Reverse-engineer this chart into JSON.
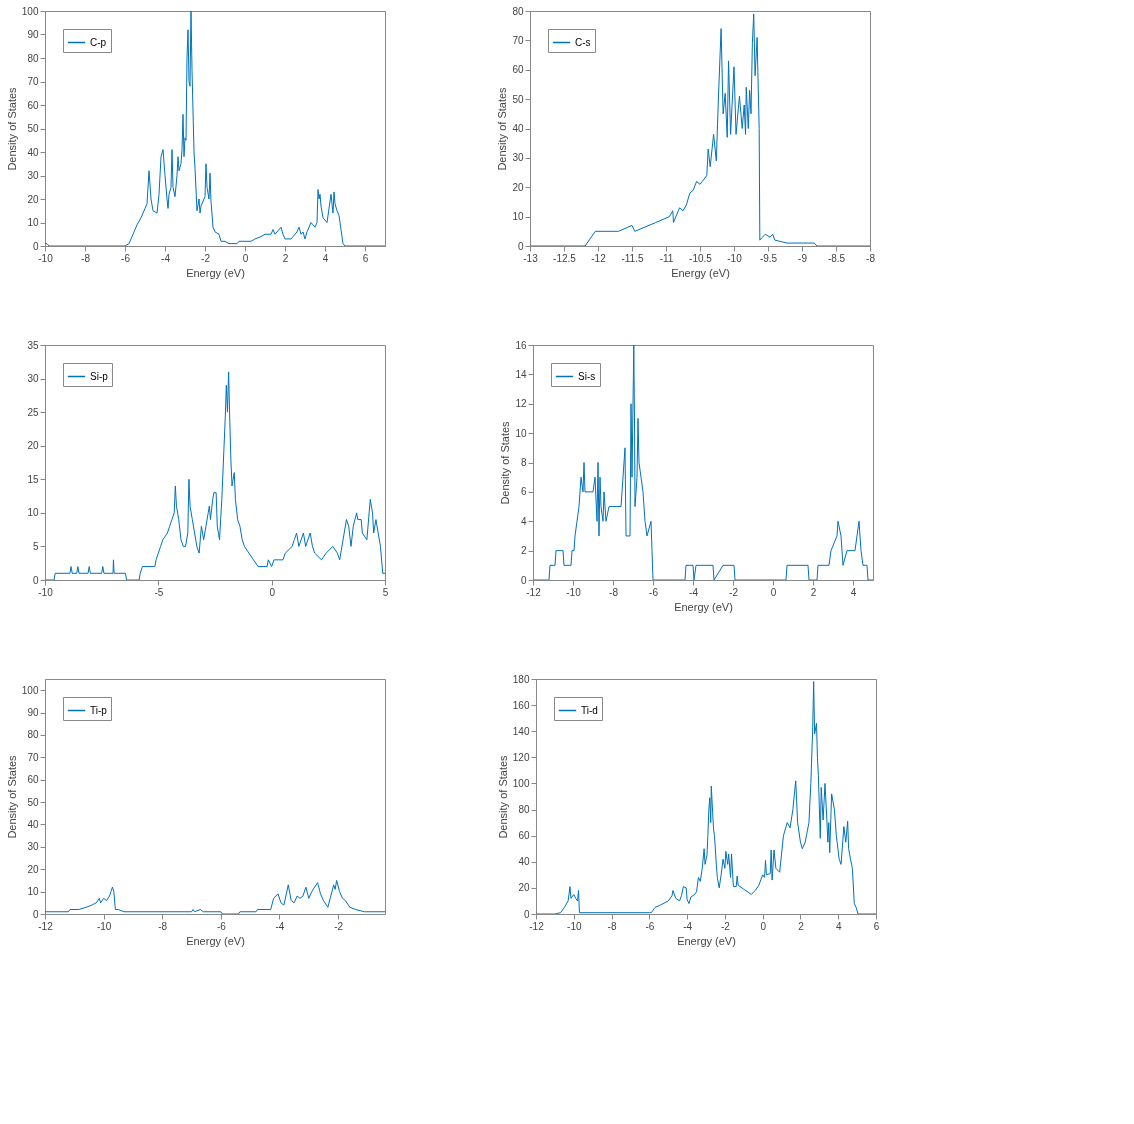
{
  "chart_data": [
    {
      "type": "line",
      "xlabel": "Energy (eV)",
      "ylabel": "Density of States",
      "xlim": [
        -10,
        7
      ],
      "xticks": [
        -10,
        -8,
        -6,
        -4,
        -2,
        0,
        2,
        4,
        6
      ],
      "ylim": [
        0,
        100
      ],
      "yticks": [
        0,
        10,
        20,
        30,
        40,
        50,
        60,
        70,
        80,
        90,
        100
      ],
      "grid": false,
      "legend": "top left",
      "series": [
        {
          "name": "C-p",
          "color": "#0072bd",
          "x": [
            -10,
            -9.9,
            -9.8,
            -6,
            -5.8,
            -5.6,
            -5.4,
            -5.2,
            -5.0,
            -4.9,
            -4.8,
            -4.7,
            -4.6,
            -4.4,
            -4.3,
            -4.2,
            -4.1,
            -4.0,
            -3.9,
            -3.85,
            -3.8,
            -3.7,
            -3.65,
            -3.6,
            -3.5,
            -3.4,
            -3.35,
            -3.3,
            -3.2,
            -3.15,
            -3.1,
            -3.05,
            -3.0,
            -2.95,
            -2.9,
            -2.85,
            -2.8,
            -2.75,
            -2.7,
            -2.65,
            -2.55,
            -2.5,
            -2.4,
            -2.3,
            -2.25,
            -2.2,
            -2.0,
            -1.95,
            -1.9,
            -1.8,
            -1.75,
            -1.7,
            -1.6,
            -1.5,
            -1.3,
            -1.2,
            -1.0,
            -0.8,
            -0.4,
            -0.3,
            0.0,
            0.3,
            0.5,
            0.8,
            1.0,
            1.3,
            1.4,
            1.5,
            1.7,
            1.8,
            1.9,
            2.0,
            2.3,
            2.4,
            2.6,
            2.7,
            2.8,
            2.9,
            3.0,
            3.1,
            3.3,
            3.4,
            3.5,
            3.6,
            3.65,
            3.7,
            3.75,
            3.8,
            3.9,
            4.1,
            4.3,
            4.4,
            4.45,
            4.5,
            4.6,
            4.7,
            4.8,
            4.9,
            5.0,
            7.0
          ],
          "values": [
            1,
            1,
            0,
            0,
            1,
            5,
            9,
            12,
            16,
            18,
            32,
            20,
            15,
            14,
            22,
            38,
            41,
            30,
            20,
            16,
            22,
            25,
            41,
            25,
            21,
            30,
            38,
            32,
            35,
            41,
            56,
            38,
            46,
            45,
            80,
            92,
            70,
            68,
            100,
            75,
            40,
            33,
            15,
            20,
            14,
            17,
            21,
            35,
            25,
            20,
            31,
            19,
            8,
            6,
            5,
            2,
            2,
            1,
            1,
            2,
            2,
            2,
            3,
            4,
            5,
            5,
            7,
            5,
            7,
            8,
            5,
            3,
            3,
            4,
            6,
            8,
            5,
            6,
            3,
            6,
            10,
            9,
            8,
            10,
            24,
            20,
            22,
            17,
            12,
            10,
            22,
            14,
            23,
            18,
            15,
            13,
            7,
            1,
            0,
            0
          ]
        }
      ]
    },
    {
      "type": "line",
      "xlabel": "Energy (eV)",
      "ylabel": "Density of States",
      "xlim": [
        -13,
        -8
      ],
      "xticks": [
        -13,
        -12.5,
        -12,
        -11.5,
        -11,
        -10.5,
        -10,
        -9.5,
        -9,
        -8.5,
        -8
      ],
      "ylim": [
        0,
        80
      ],
      "yticks": [
        0,
        10,
        20,
        30,
        40,
        50,
        60,
        70,
        80
      ],
      "grid": false,
      "legend": "top left",
      "series": [
        {
          "name": "C-s",
          "color": "#0072bd",
          "x": [
            -13,
            -12.19,
            -12.04,
            -11.7,
            -11.5,
            -11.46,
            -11.15,
            -10.95,
            -10.9,
            -10.89,
            -10.8,
            -10.75,
            -10.7,
            -10.65,
            -10.6,
            -10.55,
            -10.5,
            -10.4,
            -10.38,
            -10.35,
            -10.3,
            -10.26,
            -10.23,
            -10.19,
            -10.16,
            -10.13,
            -10.1,
            -10.08,
            -10.05,
            -10.0,
            -9.97,
            -9.92,
            -9.88,
            -9.85,
            -9.83,
            -9.82,
            -9.79,
            -9.77,
            -9.75,
            -9.73,
            -9.71,
            -9.69,
            -9.66,
            -9.64,
            -9.63,
            -9.62,
            -9.58,
            -9.54,
            -9.47,
            -9.43,
            -9.4,
            -9.22,
            -8.82,
            -8.78,
            -8
          ],
          "values": [
            0,
            0,
            5,
            5,
            7,
            5,
            8,
            10,
            12,
            8,
            13,
            12,
            14,
            18,
            19,
            22,
            21,
            24,
            33,
            27,
            38,
            29,
            50,
            74,
            45,
            52,
            37,
            63,
            38,
            61,
            38,
            51,
            40,
            48,
            38,
            54,
            40,
            53,
            45,
            69,
            79,
            58,
            71,
            50,
            40,
            2,
            3,
            4,
            3,
            4,
            2,
            1,
            1,
            0,
            0
          ]
        }
      ]
    },
    {
      "type": "line",
      "xlim": [
        -10,
        5
      ],
      "xticks": [
        -10,
        -5,
        0,
        5
      ],
      "ylim": [
        0,
        35
      ],
      "yticks": [
        0,
        5,
        10,
        15,
        20,
        25,
        30,
        35
      ],
      "grid": false,
      "legend": "top left",
      "series": [
        {
          "name": "Si-p",
          "color": "#0072bd",
          "x": [
            -10,
            -9.6,
            -9.55,
            -8.9,
            -8.85,
            -8.8,
            -8.6,
            -8.55,
            -8.5,
            -8.1,
            -8.05,
            -8.0,
            -7.5,
            -7.45,
            -7.4,
            -7.0,
            -6.98,
            -6.95,
            -6.45,
            -6.4,
            -5.85,
            -5.8,
            -5.7,
            -5.15,
            -5.1,
            -5.0,
            -4.9,
            -4.8,
            -4.6,
            -4.5,
            -4.4,
            -4.3,
            -4.25,
            -4.2,
            -4.1,
            -4.0,
            -3.9,
            -3.8,
            -3.7,
            -3.65,
            -3.6,
            -3.5,
            -3.4,
            -3.3,
            -3.2,
            -3.1,
            -3.0,
            -2.9,
            -2.8,
            -2.75,
            -2.7,
            -2.6,
            -2.55,
            -2.45,
            -2.4,
            -2.3,
            -2.2,
            -2.1,
            -2.05,
            -2.0,
            -1.95,
            -1.9,
            -1.85,
            -1.8,
            -1.75,
            -1.65,
            -1.6,
            -1.5,
            -1.4,
            -1.3,
            -1.2,
            -1.0,
            -0.8,
            -0.6,
            -0.2,
            -0.15,
            0.0,
            0.1,
            0.5,
            0.6,
            0.9,
            1.0,
            1.1,
            1.2,
            1.4,
            1.5,
            1.7,
            1.8,
            1.9,
            2.2,
            2.4,
            2.7,
            2.9,
            3.0,
            3.2,
            3.3,
            3.4,
            3.5,
            3.6,
            3.75,
            3.8,
            3.95,
            4.0,
            4.2,
            4.35,
            4.45,
            4.5,
            4.6,
            4.7,
            4.8,
            4.9,
            5.0
          ],
          "values": [
            0,
            0,
            1,
            1,
            2,
            1,
            1,
            2,
            1,
            1,
            2,
            1,
            1,
            2,
            1,
            1,
            3,
            1,
            1,
            0,
            0,
            1,
            2,
            2,
            3,
            4,
            5,
            6,
            7,
            8,
            9,
            10,
            14,
            11,
            9,
            6,
            5,
            5,
            7,
            15,
            11,
            9,
            7,
            5,
            4,
            8,
            6,
            8,
            10,
            11,
            9,
            12,
            13,
            13,
            8,
            6,
            12,
            20,
            24,
            29,
            25,
            31,
            24,
            18,
            14,
            16,
            12,
            9,
            8,
            6,
            5,
            4,
            3,
            2,
            2,
            3,
            2,
            3,
            3,
            4,
            5,
            6,
            7,
            5,
            7,
            5,
            7,
            5,
            4,
            3,
            4,
            5,
            4,
            3,
            7,
            9,
            8,
            5,
            8,
            10,
            9,
            9,
            7,
            6,
            12,
            10,
            7,
            9,
            7,
            5,
            1,
            1
          ]
        }
      ]
    },
    {
      "type": "line",
      "xlabel": "Energy (eV)",
      "ylabel": "Density of States",
      "xlim": [
        -12,
        5
      ],
      "xticks": [
        -12,
        -10,
        -8,
        -6,
        -4,
        -2,
        0,
        2,
        4
      ],
      "ylim": [
        0,
        16
      ],
      "yticks": [
        0,
        2,
        4,
        6,
        8,
        10,
        12,
        14,
        16
      ],
      "grid": false,
      "legend": "top left",
      "series": [
        {
          "name": "Si-s",
          "color": "#0072bd",
          "x": [
            -12,
            -11.2,
            -11.15,
            -10.9,
            -10.85,
            -10.5,
            -10.45,
            -10.1,
            -10.05,
            -9.95,
            -9.9,
            -9.8,
            -9.7,
            -9.6,
            -9.5,
            -9.45,
            -9.4,
            -9.0,
            -8.9,
            -8.8,
            -8.75,
            -8.7,
            -8.65,
            -8.6,
            -8.5,
            -8.45,
            -8.35,
            -8.2,
            -7.6,
            -7.55,
            -7.4,
            -7.35,
            -7.15,
            -7.1,
            -7.05,
            -6.96,
            -6.92,
            -6.9,
            -6.8,
            -6.75,
            -6.7,
            -6.6,
            -6.5,
            -6.4,
            -6.3,
            -6.1,
            -6.05,
            -6.0,
            -4.4,
            -4.35,
            -4.0,
            -3.95,
            -3.85,
            -3.0,
            -2.95,
            -2.5,
            -1.95,
            -1.9,
            0.65,
            0.7,
            1.75,
            1.8,
            2.2,
            2.25,
            2.8,
            2.9,
            3.2,
            3.25,
            3.4,
            3.5,
            3.7,
            4.1,
            4.2,
            4.3,
            4.4,
            4.5,
            4.7,
            4.75,
            5.0
          ],
          "values": [
            0,
            0,
            1,
            1,
            2,
            2,
            1,
            1,
            2,
            2,
            3,
            4,
            5,
            7,
            6,
            8,
            6,
            6,
            7,
            4,
            8,
            3,
            7,
            5,
            4,
            6,
            4,
            5,
            5,
            6,
            9,
            3,
            3,
            12,
            7,
            16,
            10,
            5,
            7,
            11,
            8,
            7,
            6,
            4,
            3,
            4,
            2,
            0,
            0,
            1,
            1,
            0,
            1,
            1,
            0,
            1,
            1,
            0,
            0,
            1,
            1,
            0,
            0,
            1,
            1,
            2,
            3,
            4,
            3,
            1,
            2,
            2,
            3,
            4,
            2,
            1,
            1,
            0,
            0
          ]
        }
      ]
    },
    {
      "type": "line",
      "xlabel": "Energy (eV)",
      "ylabel": "Density of States",
      "xlim": [
        -12,
        -0.4
      ],
      "xticks": [
        -12,
        -10,
        -8,
        -6,
        -4,
        -2
      ],
      "ylim": [
        0,
        105
      ],
      "yticks": [
        0,
        10,
        20,
        30,
        40,
        50,
        60,
        70,
        80,
        90,
        100
      ],
      "grid": false,
      "legend": "top left",
      "series": [
        {
          "name": "Ti-p",
          "color": "#0072bd",
          "x": [
            -12,
            -11.2,
            -11.15,
            -10.85,
            -10.6,
            -10.4,
            -10.25,
            -10.15,
            -10.1,
            -10.0,
            -9.9,
            -9.8,
            -9.75,
            -9.7,
            -9.65,
            -9.6,
            -9.5,
            -9.3,
            -7.0,
            -6.95,
            -6.9,
            -6.7,
            -6.6,
            -6.0,
            -5.95,
            -5.4,
            -5.35,
            -4.8,
            -4.75,
            -4.3,
            -4.2,
            -4.05,
            -3.95,
            -3.85,
            -3.7,
            -3.6,
            -3.5,
            -3.4,
            -3.3,
            -3.2,
            -3.1,
            -3.0,
            -2.9,
            -2.75,
            -2.7,
            -2.6,
            -2.5,
            -2.35,
            -2.25,
            -2.15,
            -2.1,
            -2.05,
            -1.95,
            -1.85,
            -1.75,
            -1.6,
            -1.4,
            -1.1,
            -0.4
          ],
          "values": [
            1,
            1,
            2,
            2,
            3,
            4,
            5,
            7,
            5,
            7,
            6,
            8,
            10,
            12,
            10,
            2,
            2,
            1,
            1,
            2,
            1,
            2,
            1,
            1,
            0,
            0,
            1,
            1,
            2,
            2,
            7,
            9,
            5,
            4,
            13,
            6,
            5,
            8,
            7,
            8,
            12,
            7,
            10,
            13,
            14,
            9,
            6,
            3,
            8,
            13,
            11,
            15,
            10,
            7,
            6,
            3,
            2,
            1,
            1
          ]
        }
      ]
    },
    {
      "type": "line",
      "xlabel": "Energy (eV)",
      "ylabel": "Density of States",
      "xlim": [
        -12,
        6
      ],
      "xticks": [
        -12,
        -10,
        -8,
        -6,
        -4,
        -2,
        0,
        2,
        4,
        6
      ],
      "ylim": [
        0,
        180
      ],
      "yticks": [
        0,
        20,
        40,
        60,
        80,
        100,
        120,
        140,
        160,
        180
      ],
      "grid": false,
      "legend": "top left",
      "series": [
        {
          "name": "Ti-d",
          "color": "#0072bd",
          "x": [
            -12,
            -11,
            -10.7,
            -10.5,
            -10.3,
            -10.2,
            -10.15,
            -10.0,
            -9.9,
            -9.8,
            -9.75,
            -9.7,
            -6.0,
            -5.9,
            -5.7,
            -5.4,
            -5.0,
            -4.8,
            -4.75,
            -4.6,
            -4.4,
            -4.3,
            -4.2,
            -4.05,
            -4.0,
            -3.9,
            -3.8,
            -3.6,
            -3.5,
            -3.4,
            -3.3,
            -3.2,
            -3.1,
            -3.05,
            -2.95,
            -2.9,
            -2.85,
            -2.8,
            -2.75,
            -2.72,
            -2.65,
            -2.6,
            -2.55,
            -2.45,
            -2.4,
            -2.3,
            -2.2,
            -2.1,
            -2.0,
            -1.95,
            -1.85,
            -1.8,
            -1.7,
            -1.65,
            -1.55,
            -1.4,
            -1.35,
            -1.3,
            -1.0,
            -0.6,
            -0.4,
            -0.2,
            0.0,
            0.1,
            0.15,
            0.2,
            0.4,
            0.45,
            0.5,
            0.6,
            0.7,
            0.9,
            1.1,
            1.3,
            1.45,
            1.6,
            1.7,
            1.75,
            1.85,
            2.0,
            2.1,
            2.25,
            2.45,
            2.55,
            2.65,
            2.7,
            2.75,
            2.85,
            2.9,
            2.95,
            3.05,
            3.1,
            3.2,
            3.3,
            3.4,
            3.45,
            3.5,
            3.55,
            3.65,
            3.8,
            3.9,
            4.05,
            4.15,
            4.3,
            4.4,
            4.5,
            4.55,
            4.65,
            4.75,
            4.85,
            4.95,
            5.05,
            6.0
          ],
          "values": [
            0,
            0,
            1,
            5,
            10,
            21,
            12,
            15,
            12,
            10,
            18,
            1,
            1,
            1,
            5,
            7,
            10,
            14,
            18,
            12,
            10,
            14,
            21,
            20,
            11,
            8,
            13,
            15,
            17,
            28,
            25,
            35,
            50,
            38,
            45,
            60,
            80,
            89,
            70,
            98,
            78,
            65,
            60,
            37,
            28,
            20,
            30,
            42,
            35,
            48,
            38,
            46,
            28,
            46,
            21,
            21,
            29,
            22,
            19,
            15,
            18,
            22,
            30,
            28,
            41,
            30,
            31,
            49,
            26,
            49,
            35,
            32,
            60,
            70,
            66,
            80,
            95,
            102,
            70,
            55,
            50,
            55,
            70,
            100,
            143,
            178,
            138,
            146,
            120,
            106,
            58,
            97,
            72,
            100,
            72,
            55,
            70,
            47,
            92,
            80,
            60,
            42,
            38,
            67,
            55,
            71,
            50,
            42,
            35,
            8,
            5,
            0,
            0
          ]
        }
      ]
    }
  ]
}
